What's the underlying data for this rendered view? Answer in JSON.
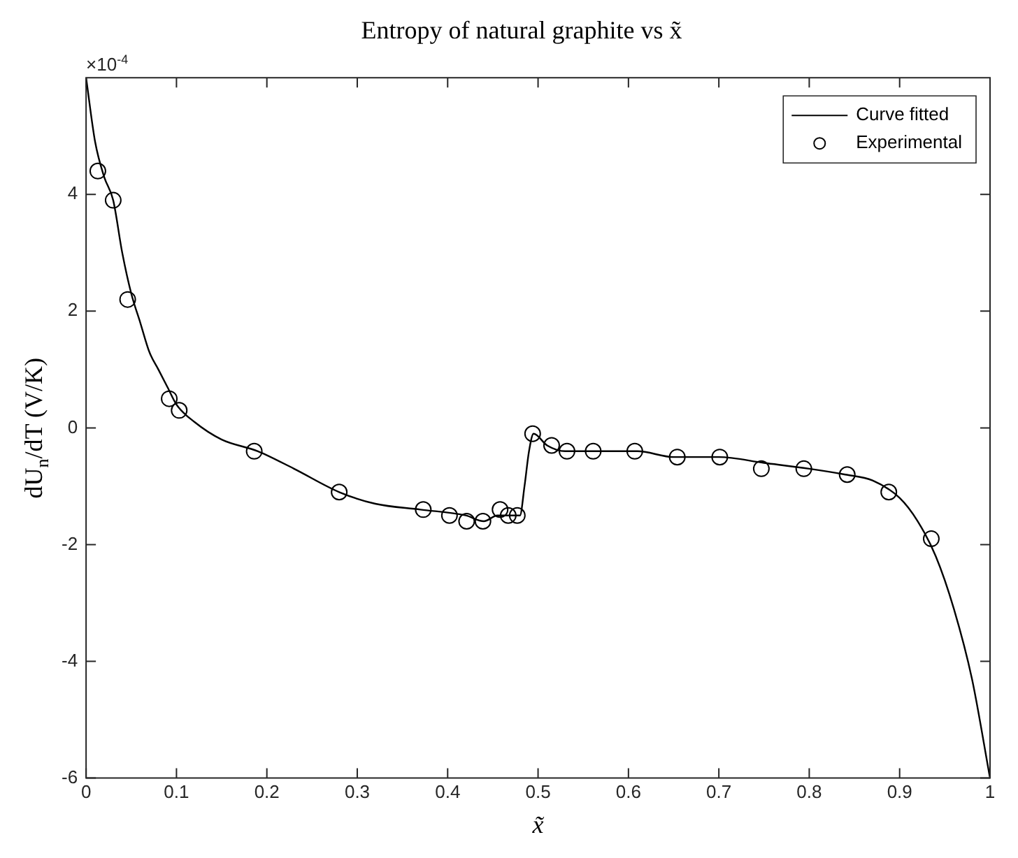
{
  "chart_data": {
    "type": "line",
    "title": "Entropy of natural graphite vs x̃",
    "xlabel": "x̃",
    "ylabel": "dU$_{n}$/dT (V/K)",
    "annotations": [
      "×10$^{-4}$"
    ],
    "xlim": [
      0,
      1
    ],
    "xticks": [
      0,
      0.1,
      0.2,
      0.3,
      0.4,
      0.5,
      0.6,
      0.7,
      0.8,
      0.9,
      1
    ],
    "ylim": [
      -6,
      6
    ],
    "yticks": [
      -6,
      -4,
      -2,
      0,
      2,
      4
    ],
    "grid": false,
    "legend": "top right",
    "series": [
      {
        "name": "Curve fitted",
        "type": "line",
        "color": "#000000",
        "marker": "none",
        "line_style": "solid",
        "x": [
          0,
          0.01,
          0.02,
          0.03,
          0.04,
          0.05,
          0.06,
          0.07,
          0.08,
          0.09,
          0.1,
          0.12,
          0.15,
          0.19,
          0.23,
          0.28,
          0.32,
          0.37,
          0.42,
          0.44,
          0.455,
          0.47,
          0.48,
          0.485,
          0.49,
          0.495,
          0.51,
          0.53,
          0.56,
          0.61,
          0.65,
          0.7,
          0.75,
          0.8,
          0.84,
          0.87,
          0.9,
          0.92,
          0.94,
          0.96,
          0.98,
          1
        ],
        "values": [
          6.0,
          4.9,
          4.3,
          3.9,
          3.0,
          2.3,
          1.8,
          1.3,
          1.0,
          0.7,
          0.4,
          0.1,
          -0.2,
          -0.4,
          -0.7,
          -1.1,
          -1.3,
          -1.4,
          -1.5,
          -1.6,
          -1.5,
          -1.5,
          -1.5,
          -1.0,
          -0.4,
          -0.1,
          -0.3,
          -0.4,
          -0.4,
          -0.4,
          -0.5,
          -0.5,
          -0.6,
          -0.7,
          -0.8,
          -0.9,
          -1.2,
          -1.6,
          -2.2,
          -3.1,
          -4.3,
          -6.0
        ]
      },
      {
        "name": "Experimental",
        "type": "scatter",
        "color": "#000000",
        "marker": "circle",
        "x": [
          0.013,
          0.03,
          0.046,
          0.092,
          0.103,
          0.186,
          0.28,
          0.373,
          0.402,
          0.421,
          0.439,
          0.458,
          0.467,
          0.477,
          0.494,
          0.515,
          0.532,
          0.561,
          0.607,
          0.654,
          0.701,
          0.747,
          0.794,
          0.842,
          0.888,
          0.935
        ],
        "values": [
          4.4,
          3.9,
          2.2,
          0.5,
          0.3,
          -0.4,
          -1.1,
          -1.4,
          -1.5,
          -1.6,
          -1.6,
          -1.4,
          -1.5,
          -1.5,
          -0.1,
          -0.3,
          -0.4,
          -0.4,
          -0.4,
          -0.5,
          -0.5,
          -0.7,
          -0.7,
          -0.8,
          -1.1,
          -1.9
        ]
      }
    ]
  }
}
